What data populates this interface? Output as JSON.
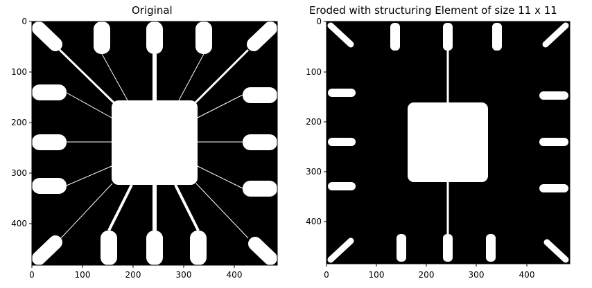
{
  "figure": {
    "panels": [
      {
        "title": "Original",
        "xticks": [
          "0",
          "100",
          "200",
          "300",
          "400"
        ],
        "yticks": [
          "0",
          "100",
          "200",
          "300",
          "400"
        ]
      },
      {
        "title": "Eroded with structuring Element of size 11 x 11",
        "xticks": [
          "0",
          "100",
          "200",
          "300",
          "400"
        ],
        "yticks": [
          "0",
          "100",
          "200",
          "300",
          "400"
        ]
      }
    ],
    "colors": {
      "background": "#000000",
      "foreground": "#ffffff",
      "axes": "#000000"
    }
  }
}
